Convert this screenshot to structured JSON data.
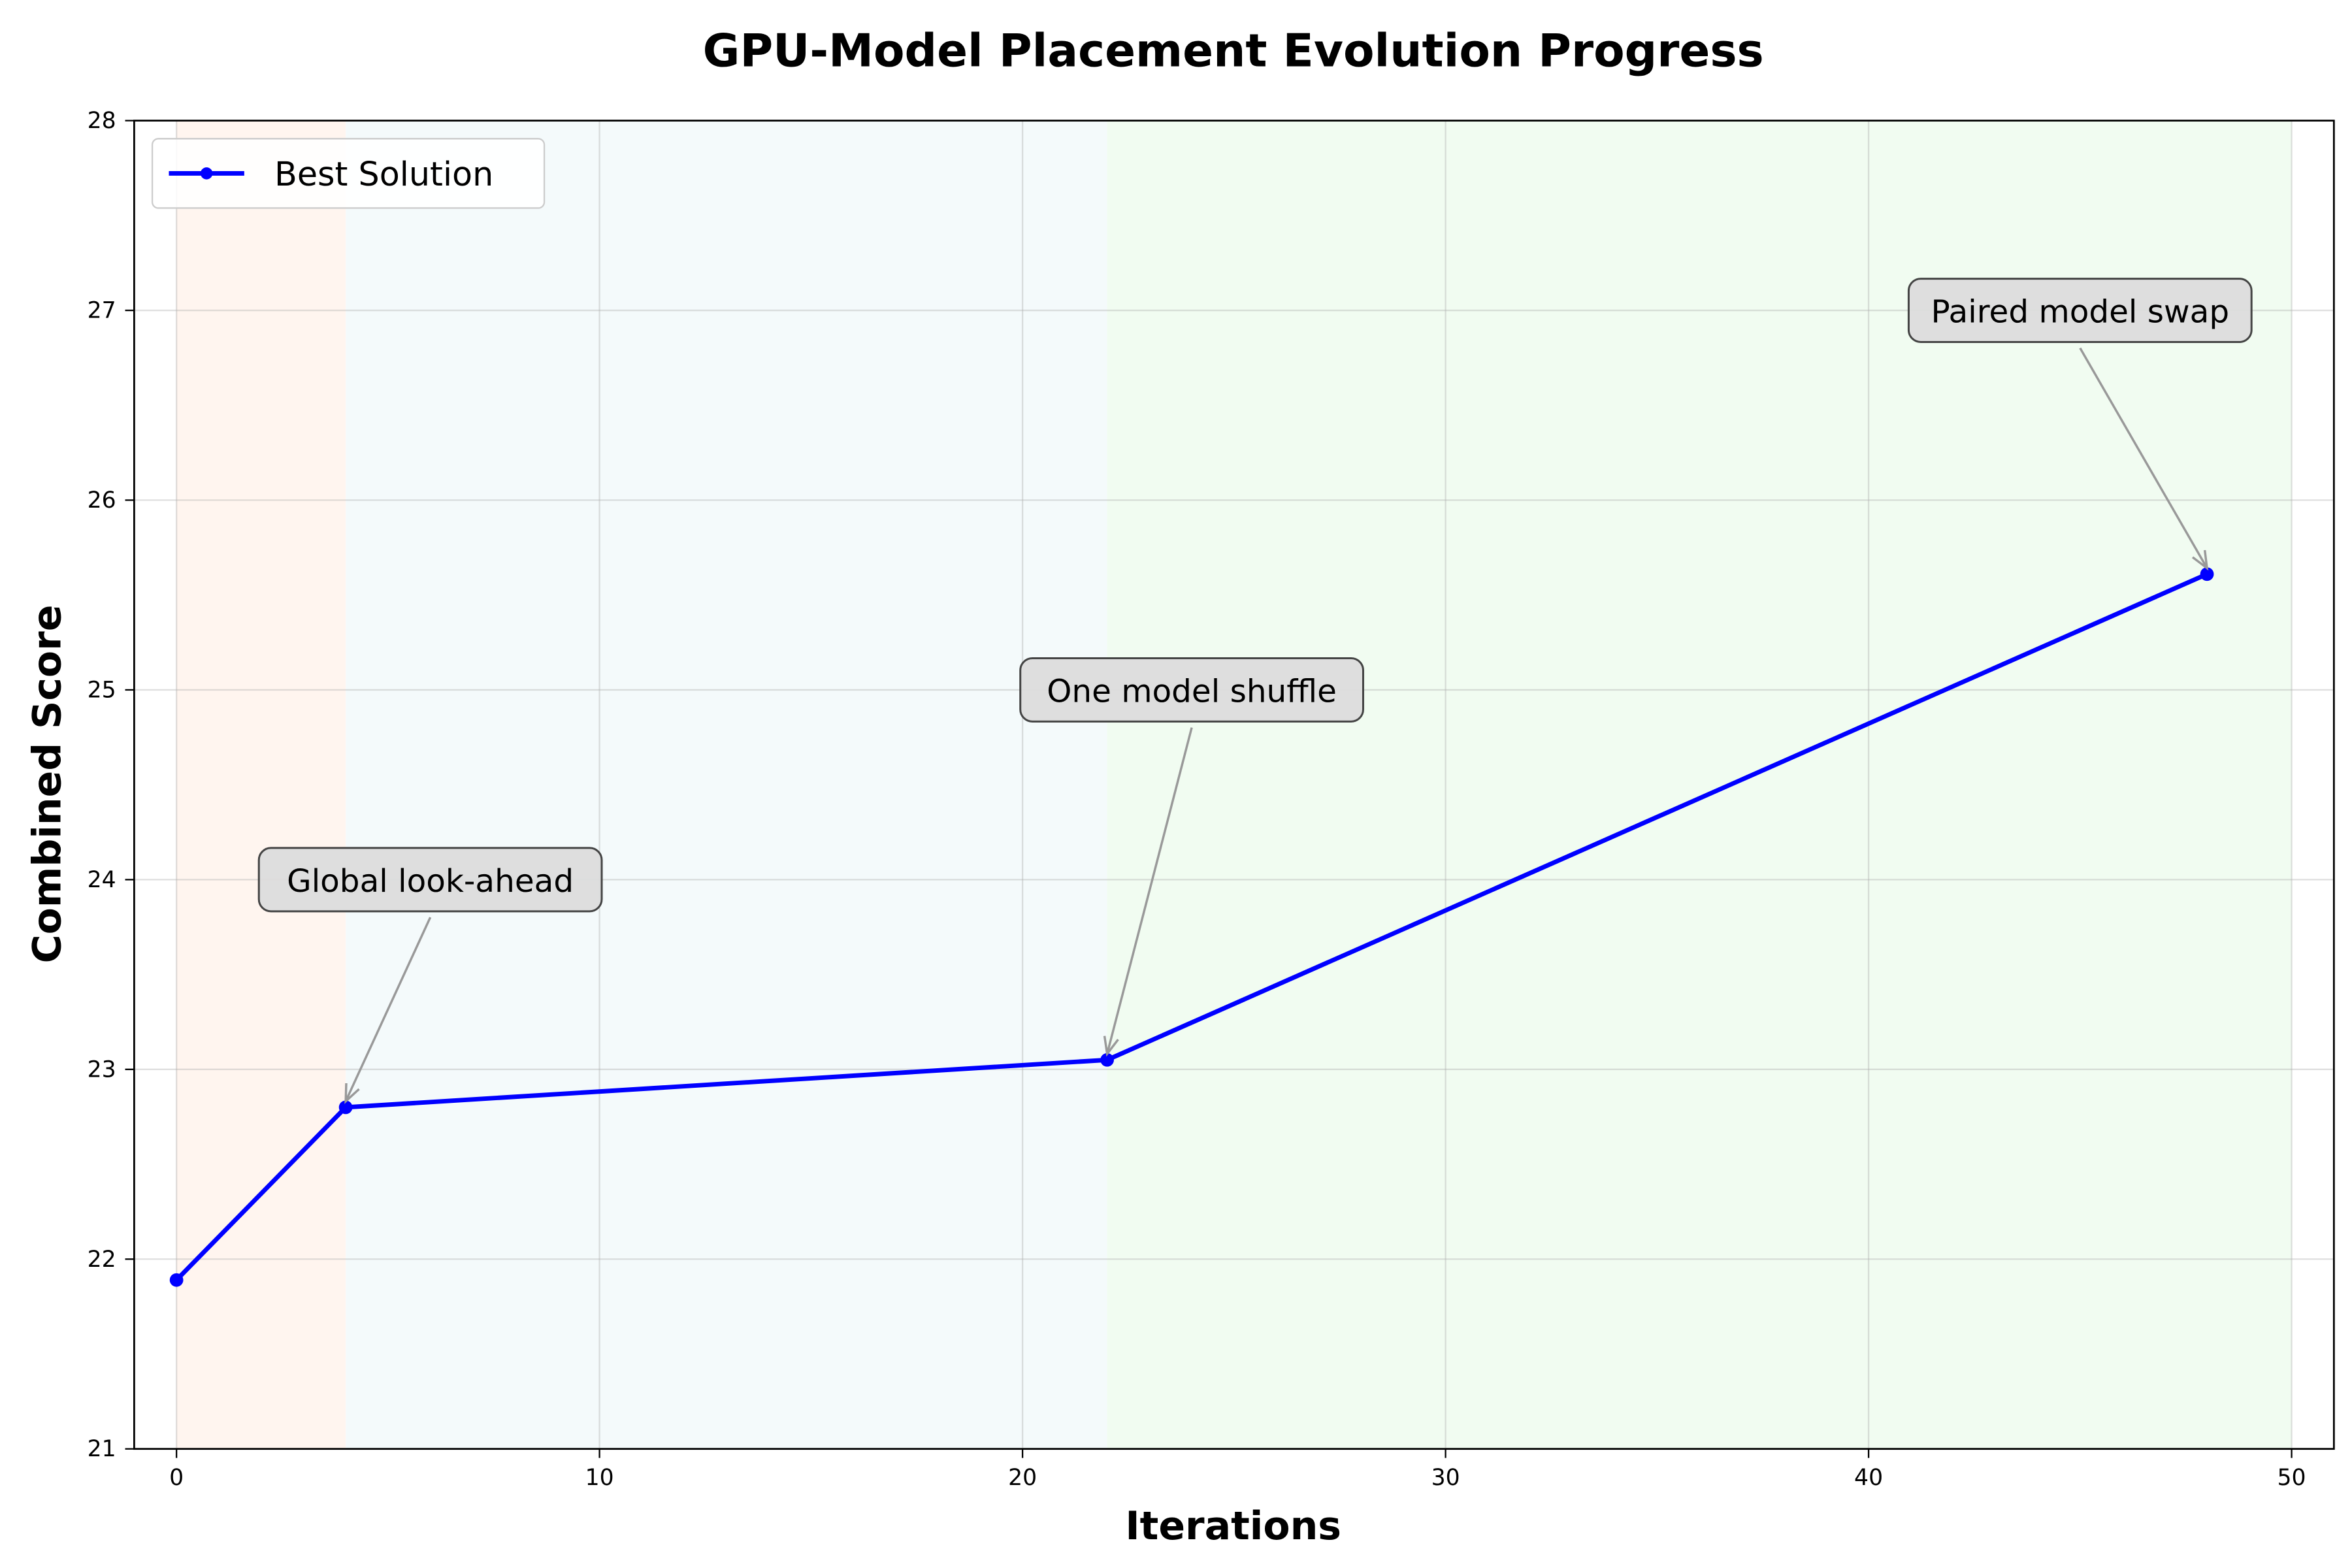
{
  "chart_data": {
    "type": "line",
    "title": "GPU-Model Placement Evolution Progress",
    "xlabel": "Iterations",
    "ylabel": "Combined Score",
    "xlim": [
      -1,
      51
    ],
    "ylim": [
      21,
      28
    ],
    "xticks": [
      0,
      10,
      20,
      30,
      40,
      50
    ],
    "yticks": [
      21,
      22,
      23,
      24,
      25,
      26,
      27,
      28
    ],
    "grid": true,
    "legend": {
      "placement": "top-left",
      "entries": [
        "Best Solution"
      ]
    },
    "series": [
      {
        "name": "Best Solution",
        "color": "#0000ff",
        "marker": "circle",
        "x": [
          0,
          4,
          22,
          48
        ],
        "y": [
          21.89,
          22.8,
          23.05,
          25.61
        ]
      }
    ],
    "regions": [
      {
        "x0": 0,
        "x1": 4,
        "color": "#fff5ef"
      },
      {
        "x0": 4,
        "x1": 22,
        "color": "#f4fafb"
      },
      {
        "x0": 22,
        "x1": 50,
        "color": "#f1fcf1"
      }
    ],
    "annotations": [
      {
        "text": "Global look-ahead",
        "target": [
          4,
          22.8
        ],
        "text_pos": [
          6,
          24
        ]
      },
      {
        "text": "One model shuffle",
        "target": [
          22,
          23.05
        ],
        "text_pos": [
          24,
          25
        ]
      },
      {
        "text": "Paired model swap",
        "target": [
          48,
          25.61
        ],
        "text_pos": [
          45,
          27
        ]
      }
    ]
  }
}
